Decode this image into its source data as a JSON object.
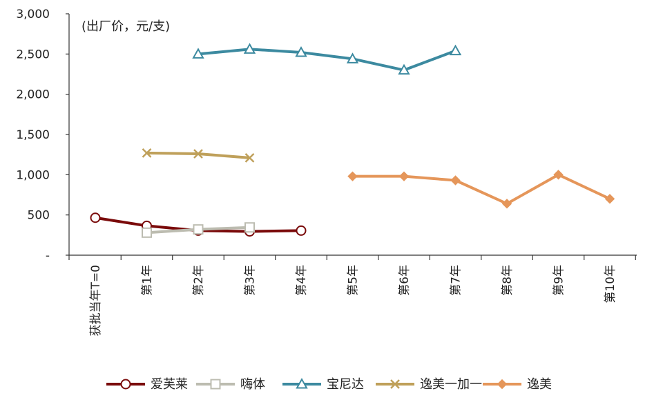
{
  "chart_data": {
    "type": "line",
    "title": "",
    "unit_label": "(出厂价，元/支)",
    "xlabel": "",
    "ylabel": "",
    "categories": [
      "获批当年T=0",
      "第1年",
      "第2年",
      "第3年",
      "第4年",
      "第5年",
      "第6年",
      "第7年",
      "第8年",
      "第9年",
      "第10年"
    ],
    "ylim": [
      0,
      3000
    ],
    "yticks": [
      0,
      500,
      1000,
      1500,
      2000,
      2500,
      3000
    ],
    "ytick_labels": [
      "-",
      "500",
      "1,000",
      "1,500",
      "2,000",
      "2,500",
      "3,000"
    ],
    "grid": false,
    "legend_position": "bottom",
    "series": [
      {
        "name": "爱芙莱",
        "color": "#7a0a0a",
        "marker": "circle-open",
        "values": [
          465,
          365,
          305,
          295,
          305,
          null,
          null,
          null,
          null,
          null,
          null
        ]
      },
      {
        "name": "嗨体",
        "color": "#bcbcb0",
        "marker": "square-open",
        "values": [
          null,
          280,
          320,
          345,
          null,
          null,
          null,
          null,
          null,
          null,
          null
        ]
      },
      {
        "name": "宝尼达",
        "color": "#3c8aa0",
        "marker": "triangle-open",
        "values": [
          null,
          null,
          2500,
          2560,
          2520,
          2440,
          2300,
          2540,
          null,
          null,
          null
        ]
      },
      {
        "name": "逸美一加一",
        "color": "#bfa05a",
        "marker": "x",
        "values": [
          null,
          1270,
          1260,
          1210,
          null,
          null,
          null,
          null,
          null,
          null,
          null
        ]
      },
      {
        "name": "逸美",
        "color": "#e5965a",
        "marker": "diamond",
        "values": [
          null,
          null,
          null,
          null,
          null,
          980,
          980,
          930,
          640,
          1000,
          700
        ]
      }
    ]
  }
}
